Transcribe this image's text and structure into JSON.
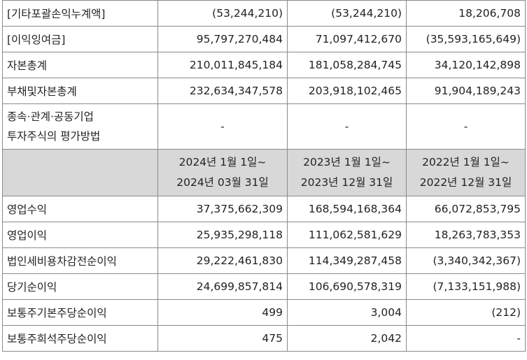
{
  "rows_top": [
    {
      "label": "[기타포괄손익누계액]",
      "v1": "(53,244,210)",
      "v2": "(53,244,210)",
      "v3": "18,206,708"
    },
    {
      "label": "[이익잉여금]",
      "v1": "95,797,270,484",
      "v2": "71,097,412,670",
      "v3": "(35,593,165,649)"
    },
    {
      "label": "자본총계",
      "v1": "210,011,845,184",
      "v2": "181,058,284,745",
      "v3": "34,120,142,898"
    },
    {
      "label": "부채및자본총계",
      "v1": "232,634,347,578",
      "v2": "203,918,102,465",
      "v3": "91,904,189,243"
    }
  ],
  "method_row": {
    "label_line1": "종속·관계·공동기업",
    "label_line2": "투자주식의 평가방법",
    "v1": "-",
    "v2": "-",
    "v3": "-"
  },
  "period_header": {
    "c1_line1": "2024년 1월 1일~",
    "c1_line2": "2024년 03월 31일",
    "c2_line1": "2023년 1월 1일~",
    "c2_line2": "2023년 12월 31일",
    "c3_line1": "2022년 1월 1일~",
    "c3_line2": "2022년 12월 31일"
  },
  "rows_bottom": [
    {
      "label": "영업수익",
      "v1": "37,375,662,309",
      "v2": "168,594,168,364",
      "v3": "66,072,853,795"
    },
    {
      "label": "영업이익",
      "v1": "25,935,298,118",
      "v2": "111,062,581,629",
      "v3": "18,263,783,353"
    },
    {
      "label": "법인세비용차감전순이익",
      "v1": "29,222,461,830",
      "v2": "114,349,287,458",
      "v3": "(3,340,342,367)"
    },
    {
      "label": "당기순이익",
      "v1": "24,699,857,814",
      "v2": "106,690,578,319",
      "v3": "(7,133,151,988)"
    },
    {
      "label": "보통주기본주당순이익",
      "v1": "499",
      "v2": "3,004",
      "v3": "(212)"
    },
    {
      "label": "보통주희석주당순이익",
      "v1": "475",
      "v2": "2,042",
      "v3": "-"
    }
  ]
}
